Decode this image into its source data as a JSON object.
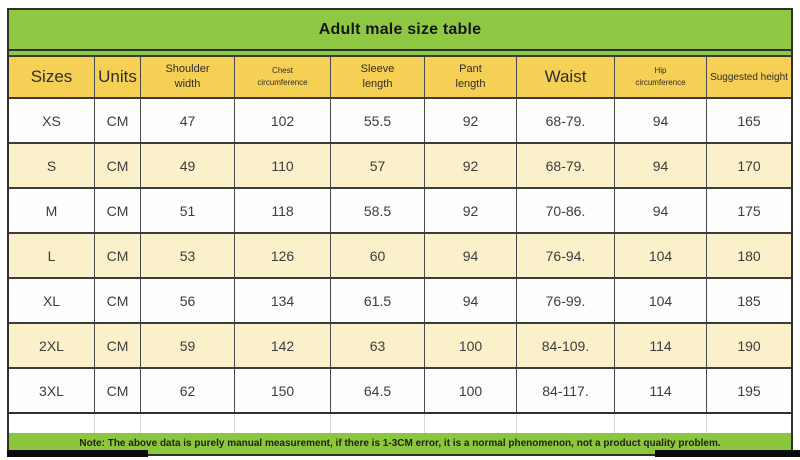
{
  "title": "Adult male size table",
  "table": {
    "columns": [
      "Sizes",
      "Units",
      "Shoulder\nwidth",
      "Chest\ncircumference",
      "Sleeve\nlength",
      "Pant\nlength",
      "Waist",
      "Hip\ncircumference",
      "Suggested height"
    ],
    "rows": [
      {
        "size": "XS",
        "unit": "CM",
        "values": [
          "47",
          "102",
          "55.5",
          "92",
          "68-79.",
          "94",
          "165"
        ]
      },
      {
        "size": "S",
        "unit": "CM",
        "values": [
          "49",
          "110",
          "57",
          "92",
          "68-79.",
          "94",
          "170"
        ]
      },
      {
        "size": "M",
        "unit": "CM",
        "values": [
          "51",
          "118",
          "58.5",
          "92",
          "70-86.",
          "94",
          "175"
        ]
      },
      {
        "size": "L",
        "unit": "CM",
        "values": [
          "53",
          "126",
          "60",
          "94",
          "76-94.",
          "104",
          "180"
        ]
      },
      {
        "size": "XL",
        "unit": "CM",
        "values": [
          "56",
          "134",
          "61.5",
          "94",
          "76-99.",
          "104",
          "185"
        ]
      },
      {
        "size": "2XL",
        "unit": "CM",
        "values": [
          "59",
          "142",
          "63",
          "100",
          "84-109.",
          "114",
          "190"
        ]
      },
      {
        "size": "3XL",
        "unit": "CM",
        "values": [
          "62",
          "150",
          "64.5",
          "100",
          "84-117.",
          "114",
          "195"
        ]
      }
    ]
  },
  "note": "Note: The above data is purely manual measurement, if there is 1-3CM error, it is a normal phenomenon, not a product quality problem.",
  "colors": {
    "header_green": "#8fc843",
    "note_green": "#8cc63c",
    "header_yellow": "#f6cf55",
    "row_cream": "#faf0c9",
    "row_white": "#fdfdfc",
    "border_dark": "#3a3a3a"
  }
}
